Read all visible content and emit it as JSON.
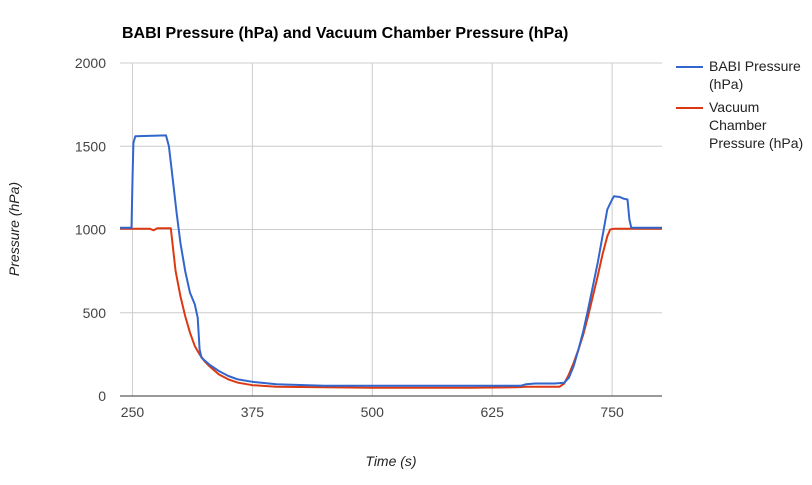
{
  "chart_data": {
    "type": "line",
    "title": "BABI Pressure (hPa) and Vacuum Chamber Pressure (hPa)",
    "xlabel": "Time (s)",
    "ylabel": "Pressure (hPa)",
    "xlim": [
      237,
      802
    ],
    "ylim": [
      0,
      2000
    ],
    "xticks": [
      250,
      375,
      500,
      625,
      750
    ],
    "yticks": [
      0,
      500,
      1000,
      1500,
      2000
    ],
    "grid": true,
    "legend_position": "right",
    "series": [
      {
        "name": "BABI Pressure (hPa)",
        "legend_lines": [
          "BABI Pressure",
          "(hPa)"
        ],
        "color": "#3366cc",
        "points": [
          [
            237,
            1010
          ],
          [
            249,
            1010
          ],
          [
            250,
            1300
          ],
          [
            251,
            1520
          ],
          [
            253,
            1560
          ],
          [
            285,
            1565
          ],
          [
            288,
            1500
          ],
          [
            292,
            1300
          ],
          [
            296,
            1100
          ],
          [
            300,
            920
          ],
          [
            305,
            750
          ],
          [
            310,
            620
          ],
          [
            315,
            550
          ],
          [
            318,
            470
          ],
          [
            320,
            280
          ],
          [
            322,
            230
          ],
          [
            330,
            190
          ],
          [
            340,
            150
          ],
          [
            350,
            120
          ],
          [
            360,
            100
          ],
          [
            375,
            85
          ],
          [
            400,
            70
          ],
          [
            450,
            62
          ],
          [
            500,
            62
          ],
          [
            600,
            62
          ],
          [
            655,
            62
          ],
          [
            660,
            70
          ],
          [
            670,
            75
          ],
          [
            690,
            75
          ],
          [
            700,
            80
          ],
          [
            705,
            110
          ],
          [
            710,
            180
          ],
          [
            715,
            280
          ],
          [
            720,
            390
          ],
          [
            725,
            520
          ],
          [
            730,
            660
          ],
          [
            735,
            800
          ],
          [
            740,
            960
          ],
          [
            745,
            1120
          ],
          [
            750,
            1180
          ],
          [
            752,
            1200
          ],
          [
            758,
            1195
          ],
          [
            762,
            1185
          ],
          [
            766,
            1180
          ],
          [
            768,
            1060
          ],
          [
            770,
            1010
          ],
          [
            802,
            1010
          ]
        ]
      },
      {
        "name": "Vacuum Chamber Pressure (hPa)",
        "legend_lines": [
          "Vacuum",
          "Chamber",
          "Pressure (hPa)"
        ],
        "color": "#dc3912",
        "points": [
          [
            237,
            1005
          ],
          [
            268,
            1005
          ],
          [
            272,
            995
          ],
          [
            276,
            1008
          ],
          [
            290,
            1008
          ],
          [
            292,
            900
          ],
          [
            295,
            750
          ],
          [
            300,
            600
          ],
          [
            305,
            480
          ],
          [
            310,
            380
          ],
          [
            315,
            300
          ],
          [
            320,
            250
          ],
          [
            325,
            210
          ],
          [
            330,
            180
          ],
          [
            340,
            130
          ],
          [
            350,
            100
          ],
          [
            360,
            80
          ],
          [
            375,
            65
          ],
          [
            400,
            55
          ],
          [
            450,
            52
          ],
          [
            500,
            50
          ],
          [
            600,
            50
          ],
          [
            650,
            52
          ],
          [
            660,
            55
          ],
          [
            695,
            55
          ],
          [
            700,
            75
          ],
          [
            705,
            130
          ],
          [
            710,
            200
          ],
          [
            715,
            280
          ],
          [
            720,
            370
          ],
          [
            725,
            480
          ],
          [
            730,
            600
          ],
          [
            735,
            720
          ],
          [
            740,
            850
          ],
          [
            745,
            960
          ],
          [
            748,
            1000
          ],
          [
            752,
            1005
          ],
          [
            802,
            1005
          ]
        ]
      }
    ]
  }
}
